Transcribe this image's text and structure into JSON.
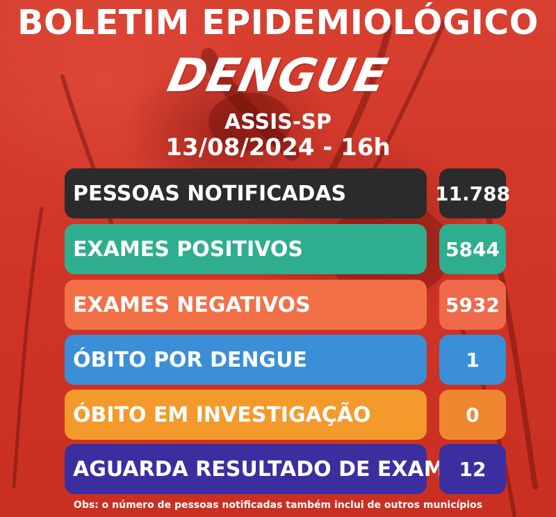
{
  "header": {
    "title": "BOLETIM EPIDEMIOLÓGICO",
    "subtitle": "DENGUE",
    "location": "ASSIS-SP",
    "datetime": "13/08/2024 - 16h"
  },
  "rows": [
    {
      "label": "PESSOAS NOTIFICADAS",
      "value": "11.788",
      "label_bg": "#2b2b2b",
      "value_bg": "#2b2b2b",
      "text_color": "#ffffff"
    },
    {
      "label": "EXAMES POSITIVOS",
      "value": "5844",
      "label_bg": "#2fae8f",
      "value_bg": "#2fae8f",
      "text_color": "#ffffff"
    },
    {
      "label": "EXAMES NEGATIVOS",
      "value": "5932",
      "label_bg": "#f27046",
      "value_bg": "#ee6a4a",
      "text_color": "#ffffff"
    },
    {
      "label": "ÓBITO POR DENGUE",
      "value": "1",
      "label_bg": "#3a8fd6",
      "value_bg": "#3a8fd6",
      "text_color": "#ffffff"
    },
    {
      "label": "ÓBITO EM INVESTIGAÇÃO",
      "value": "0",
      "label_bg": "#f49a2c",
      "value_bg": "#f0862f",
      "text_color": "#ffffff"
    },
    {
      "label": "AGUARDA RESULTADO DE EXAME",
      "value": "12",
      "label_bg": "#3b2fa0",
      "value_bg": "#3b2fa0",
      "text_color": "#ffffff"
    }
  ],
  "footer": {
    "note": "Obs: o número de pessoas notificadas também inclui de outros municípios"
  }
}
